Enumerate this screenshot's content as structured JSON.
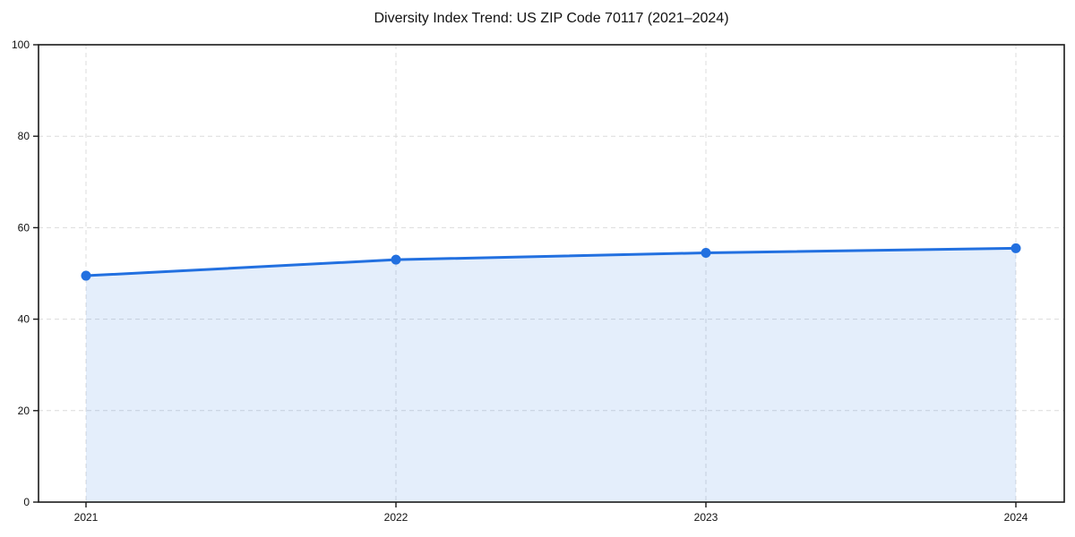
{
  "figure": {
    "title": "Diversity Index Trend: US ZIP Code 70117 (2021–2024)"
  },
  "chart_data": {
    "type": "area",
    "title": "Diversity Index Trend: US ZIP Code 70117 (2021–2024)",
    "x": [
      "2021",
      "2022",
      "2023",
      "2024"
    ],
    "series": [
      {
        "name": "Diversity Index",
        "values": [
          49.5,
          53.0,
          54.5,
          55.5
        ]
      }
    ],
    "xlabel": "",
    "ylabel": "",
    "ylim": [
      0,
      100
    ],
    "yticks": [
      0,
      20,
      40,
      60,
      80,
      100
    ],
    "grid": true,
    "grid_style": "dashed",
    "legend_position": "none",
    "line_color": "#2270e0",
    "fill_color": "rgba(34,112,224,0.12)",
    "grid_color": "#dcdcdc",
    "spine_color": "#1a1a1a",
    "tick_label_color": "#111111",
    "marker": "circle"
  }
}
